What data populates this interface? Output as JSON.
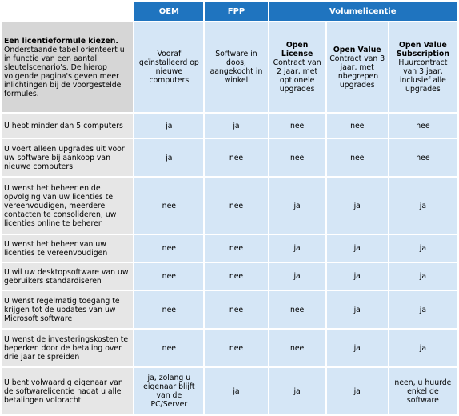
{
  "headers": {
    "oem": "OEM",
    "fpp": "FPP",
    "volume": "Volumelicentie"
  },
  "intro": {
    "title": "Een licentieformule kiezen.",
    "text": "Onderstaande tabel orienteert u in functie van een aantal sleutelscenario's. De hierop volgende pagina's geven meer inlichtingen bij de voorgestelde formules."
  },
  "columns": [
    {
      "title": "",
      "desc": "Vooraf geïnstalleerd op nieuwe computers"
    },
    {
      "title": "",
      "desc": "Software in doos, aangekocht in winkel"
    },
    {
      "title": "Open License",
      "desc": "Contract van 2 jaar, met optionele upgrades"
    },
    {
      "title": "Open Value",
      "desc": "Contract van 3 jaar, met inbegrepen upgrades"
    },
    {
      "title": "Open Value Subscription",
      "desc": "Huurcontract van 3 jaar, inclusief alle upgrades"
    }
  ],
  "rows": [
    {
      "label": "U hebt minder dan 5 computers",
      "values": [
        "ja",
        "ja",
        "nee",
        "nee",
        "nee"
      ]
    },
    {
      "label": "U voert alleen upgrades uit voor uw software bij aankoop van nieuwe computers",
      "values": [
        "ja",
        "nee",
        "nee",
        "nee",
        "nee"
      ]
    },
    {
      "label": "U wenst het beheer en de opvolging van uw licenties te vereenvoudigen, meerdere contacten te consolideren, uw licenties online te beheren",
      "values": [
        "nee",
        "nee",
        "ja",
        "ja",
        "ja"
      ]
    },
    {
      "label": "U wenst het beheer van uw licenties te vereenvoudigen",
      "values": [
        "nee",
        "nee",
        "ja",
        "ja",
        "ja"
      ]
    },
    {
      "label": "U wil uw desktopsoftware van uw gebruikers standardiseren",
      "values": [
        "nee",
        "nee",
        "ja",
        "ja",
        "ja"
      ]
    },
    {
      "label": "U wenst regelmatig toegang te krijgen tot de updates van uw Microsoft software",
      "values": [
        "nee",
        "nee",
        "nee",
        "ja",
        "ja"
      ]
    },
    {
      "label": "U wenst de investeringskosten te beperken door de betaling over drie jaar te spreiden",
      "values": [
        "nee",
        "nee",
        "nee",
        "ja",
        "ja"
      ]
    },
    {
      "label": "U bent volwaardig eigenaar van de softwarelicentie nadat u alle betalingen volbracht",
      "values": [
        "ja, zolang u eigenaar blijft van de PC/Server",
        "ja",
        "ja",
        "ja",
        "neen, u huurde enkel de software"
      ]
    }
  ]
}
